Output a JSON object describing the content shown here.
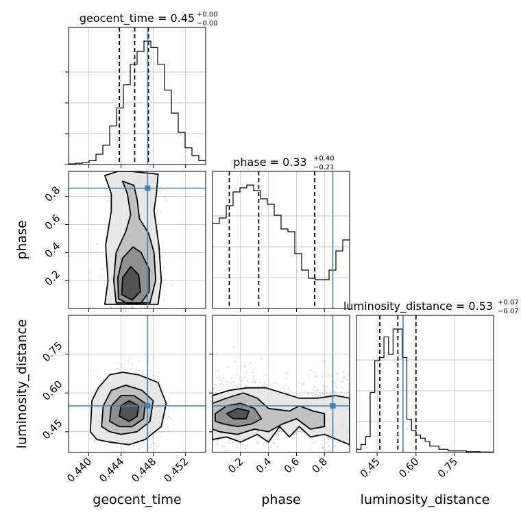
{
  "chart_data": {
    "type": "corner",
    "parameters": [
      {
        "name": "geocent_time",
        "xlabel": "geocent_time",
        "range": [
          0.4375,
          0.4545
        ],
        "ticks": [
          0.44,
          0.444,
          0.448,
          0.452
        ],
        "tick_labels": [
          "0.440",
          "0.444",
          "0.448",
          "0.452"
        ],
        "truth": 0.4473,
        "title_main": "geocent_time = 0.45",
        "title_sup": "+0.00",
        "title_sub": "−0.00",
        "quantiles": [
          0.4438,
          0.4457,
          0.4474
        ],
        "hist": {
          "edges_start": 0.4375,
          "bin_width": 0.00085,
          "counts": [
            0.5,
            1,
            1.5,
            3,
            8,
            15,
            30,
            44,
            62,
            78,
            88,
            96,
            91,
            78,
            58,
            40,
            25,
            13,
            7,
            3
          ]
        }
      },
      {
        "name": "phase",
        "xlabel": "phase",
        "ylabel": "phase",
        "range": [
          0.0,
          0.98
        ],
        "ticks": [
          0.2,
          0.4,
          0.6,
          0.8
        ],
        "tick_labels": [
          "0.2",
          "0.4",
          "0.6",
          "0.8"
        ],
        "truth": 0.86,
        "title_main": "phase = 0.33",
        "title_sup": "+0.40",
        "title_sub": "−0.21",
        "quantiles": [
          0.12,
          0.33,
          0.73
        ],
        "hist": {
          "edges_start": 0.0,
          "bin_width": 0.049,
          "counts": [
            62,
            66,
            75,
            85,
            88,
            90,
            86,
            80,
            76,
            68,
            58,
            56,
            40,
            28,
            22,
            21,
            21,
            28,
            42,
            50
          ]
        }
      },
      {
        "name": "luminosity_distance",
        "xlabel": "luminosity_distance",
        "ylabel": "luminosity_distance",
        "range": [
          0.37,
          0.9
        ],
        "ticks": [
          0.45,
          0.6,
          0.75
        ],
        "tick_labels": [
          "0.45",
          "0.60",
          "0.75"
        ],
        "truth": 0.55,
        "title_main": "luminosity_distance = 0.53",
        "title_sup": "+0.07",
        "title_sub": "−0.07",
        "quantiles": [
          0.46,
          0.53,
          0.6
        ],
        "hist": {
          "edges_start": 0.37,
          "bin_width": 0.0177,
          "counts": [
            2,
            5,
            10,
            38,
            58,
            60,
            73,
            62,
            78,
            78,
            60,
            21,
            14,
            11,
            9,
            7,
            4,
            4,
            2,
            2,
            1,
            1,
            1,
            1,
            0.5,
            0.5,
            0.5,
            0.3,
            0.3,
            0.3
          ]
        }
      }
    ],
    "pairs": {
      "phase_vs_geocent_time": {
        "contours": [
          [
            [
              0.442,
              0.03
            ],
            [
              0.4424,
              0.2
            ],
            [
              0.4421,
              0.45
            ],
            [
              0.4428,
              0.7
            ],
            [
              0.4428,
              0.82
            ],
            [
              0.442,
              0.95
            ],
            [
              0.4436,
              0.98
            ],
            [
              0.4452,
              0.98
            ],
            [
              0.4486,
              0.96
            ],
            [
              0.4484,
              0.82
            ],
            [
              0.4481,
              0.7
            ],
            [
              0.4487,
              0.45
            ],
            [
              0.449,
              0.2
            ],
            [
              0.4486,
              0.03
            ]
          ],
          [
            [
              0.4434,
              0.04
            ],
            [
              0.4431,
              0.2
            ],
            [
              0.4434,
              0.4
            ],
            [
              0.4446,
              0.55
            ],
            [
              0.4452,
              0.67
            ],
            [
              0.4448,
              0.82
            ],
            [
              0.4442,
              0.91
            ],
            [
              0.4456,
              0.88
            ],
            [
              0.446,
              0.78
            ],
            [
              0.4463,
              0.64
            ],
            [
              0.4474,
              0.54
            ],
            [
              0.4481,
              0.4
            ],
            [
              0.4483,
              0.2
            ],
            [
              0.4476,
              0.04
            ]
          ],
          [
            [
              0.4437,
              0.07
            ],
            [
              0.4436,
              0.22
            ],
            [
              0.4442,
              0.36
            ],
            [
              0.4455,
              0.44
            ],
            [
              0.4465,
              0.4
            ],
            [
              0.4475,
              0.28
            ],
            [
              0.4475,
              0.12
            ],
            [
              0.4465,
              0.04
            ],
            [
              0.445,
              0.03
            ]
          ],
          [
            [
              0.4441,
              0.1
            ],
            [
              0.4442,
              0.22
            ],
            [
              0.4452,
              0.3
            ],
            [
              0.4462,
              0.24
            ],
            [
              0.4464,
              0.12
            ],
            [
              0.4454,
              0.06
            ]
          ]
        ]
      },
      "luminosity_distance_vs_geocent_time": {
        "contours": [
          [
            [
              0.4402,
              0.45
            ],
            [
              0.4404,
              0.57
            ],
            [
              0.4412,
              0.62
            ],
            [
              0.4426,
              0.67
            ],
            [
              0.4442,
              0.68
            ],
            [
              0.4462,
              0.67
            ],
            [
              0.4486,
              0.64
            ],
            [
              0.4496,
              0.56
            ],
            [
              0.449,
              0.47
            ],
            [
              0.447,
              0.42
            ],
            [
              0.445,
              0.4
            ],
            [
              0.4426,
              0.41
            ],
            [
              0.441,
              0.42
            ]
          ],
          [
            [
              0.4416,
              0.47
            ],
            [
              0.4418,
              0.55
            ],
            [
              0.4428,
              0.61
            ],
            [
              0.4446,
              0.63
            ],
            [
              0.4466,
              0.61
            ],
            [
              0.448,
              0.57
            ],
            [
              0.4476,
              0.49
            ],
            [
              0.446,
              0.45
            ],
            [
              0.444,
              0.44
            ],
            [
              0.4426,
              0.45
            ]
          ],
          [
            [
              0.4426,
              0.49
            ],
            [
              0.4428,
              0.55
            ],
            [
              0.444,
              0.59
            ],
            [
              0.4456,
              0.59
            ],
            [
              0.447,
              0.56
            ],
            [
              0.4468,
              0.5
            ],
            [
              0.4454,
              0.47
            ],
            [
              0.4438,
              0.47
            ]
          ],
          [
            [
              0.4438,
              0.51
            ],
            [
              0.444,
              0.55
            ],
            [
              0.445,
              0.57
            ],
            [
              0.4462,
              0.55
            ],
            [
              0.446,
              0.51
            ],
            [
              0.445,
              0.49
            ]
          ]
        ]
      },
      "luminosity_distance_vs_phase": {
        "contours": [
          [
            [
              0.0,
              0.59
            ],
            [
              0.12,
              0.61
            ],
            [
              0.25,
              0.62
            ],
            [
              0.38,
              0.62
            ],
            [
              0.5,
              0.6
            ],
            [
              0.62,
              0.58
            ],
            [
              0.75,
              0.58
            ],
            [
              0.88,
              0.59
            ],
            [
              0.98,
              0.58
            ],
            [
              0.98,
              0.4
            ],
            [
              0.8,
              0.44
            ],
            [
              0.7,
              0.43
            ],
            [
              0.62,
              0.47
            ],
            [
              0.55,
              0.43
            ],
            [
              0.48,
              0.47
            ],
            [
              0.4,
              0.41
            ],
            [
              0.32,
              0.44
            ],
            [
              0.2,
              0.41
            ],
            [
              0.1,
              0.43
            ],
            [
              0.0,
              0.42
            ]
          ],
          [
            [
              0.0,
              0.56
            ],
            [
              0.1,
              0.58
            ],
            [
              0.22,
              0.6
            ],
            [
              0.32,
              0.58
            ],
            [
              0.4,
              0.54
            ],
            [
              0.55,
              0.53
            ],
            [
              0.62,
              0.55
            ],
            [
              0.72,
              0.53
            ],
            [
              0.8,
              0.52
            ],
            [
              0.8,
              0.47
            ],
            [
              0.7,
              0.46
            ],
            [
              0.6,
              0.5
            ],
            [
              0.5,
              0.48
            ],
            [
              0.4,
              0.45
            ],
            [
              0.3,
              0.46
            ],
            [
              0.18,
              0.44
            ],
            [
              0.05,
              0.45
            ],
            [
              0.0,
              0.46
            ]
          ],
          [
            [
              0.02,
              0.52
            ],
            [
              0.1,
              0.55
            ],
            [
              0.2,
              0.56
            ],
            [
              0.3,
              0.54
            ],
            [
              0.35,
              0.5
            ],
            [
              0.28,
              0.48
            ],
            [
              0.18,
              0.47
            ],
            [
              0.08,
              0.48
            ],
            [
              0.02,
              0.49
            ]
          ],
          [
            [
              0.1,
              0.52
            ],
            [
              0.18,
              0.54
            ],
            [
              0.26,
              0.53
            ],
            [
              0.24,
              0.5
            ],
            [
              0.15,
              0.5
            ]
          ]
        ]
      }
    },
    "truth_color": "#4682b4",
    "hist_color": "#000000",
    "grid": true
  }
}
